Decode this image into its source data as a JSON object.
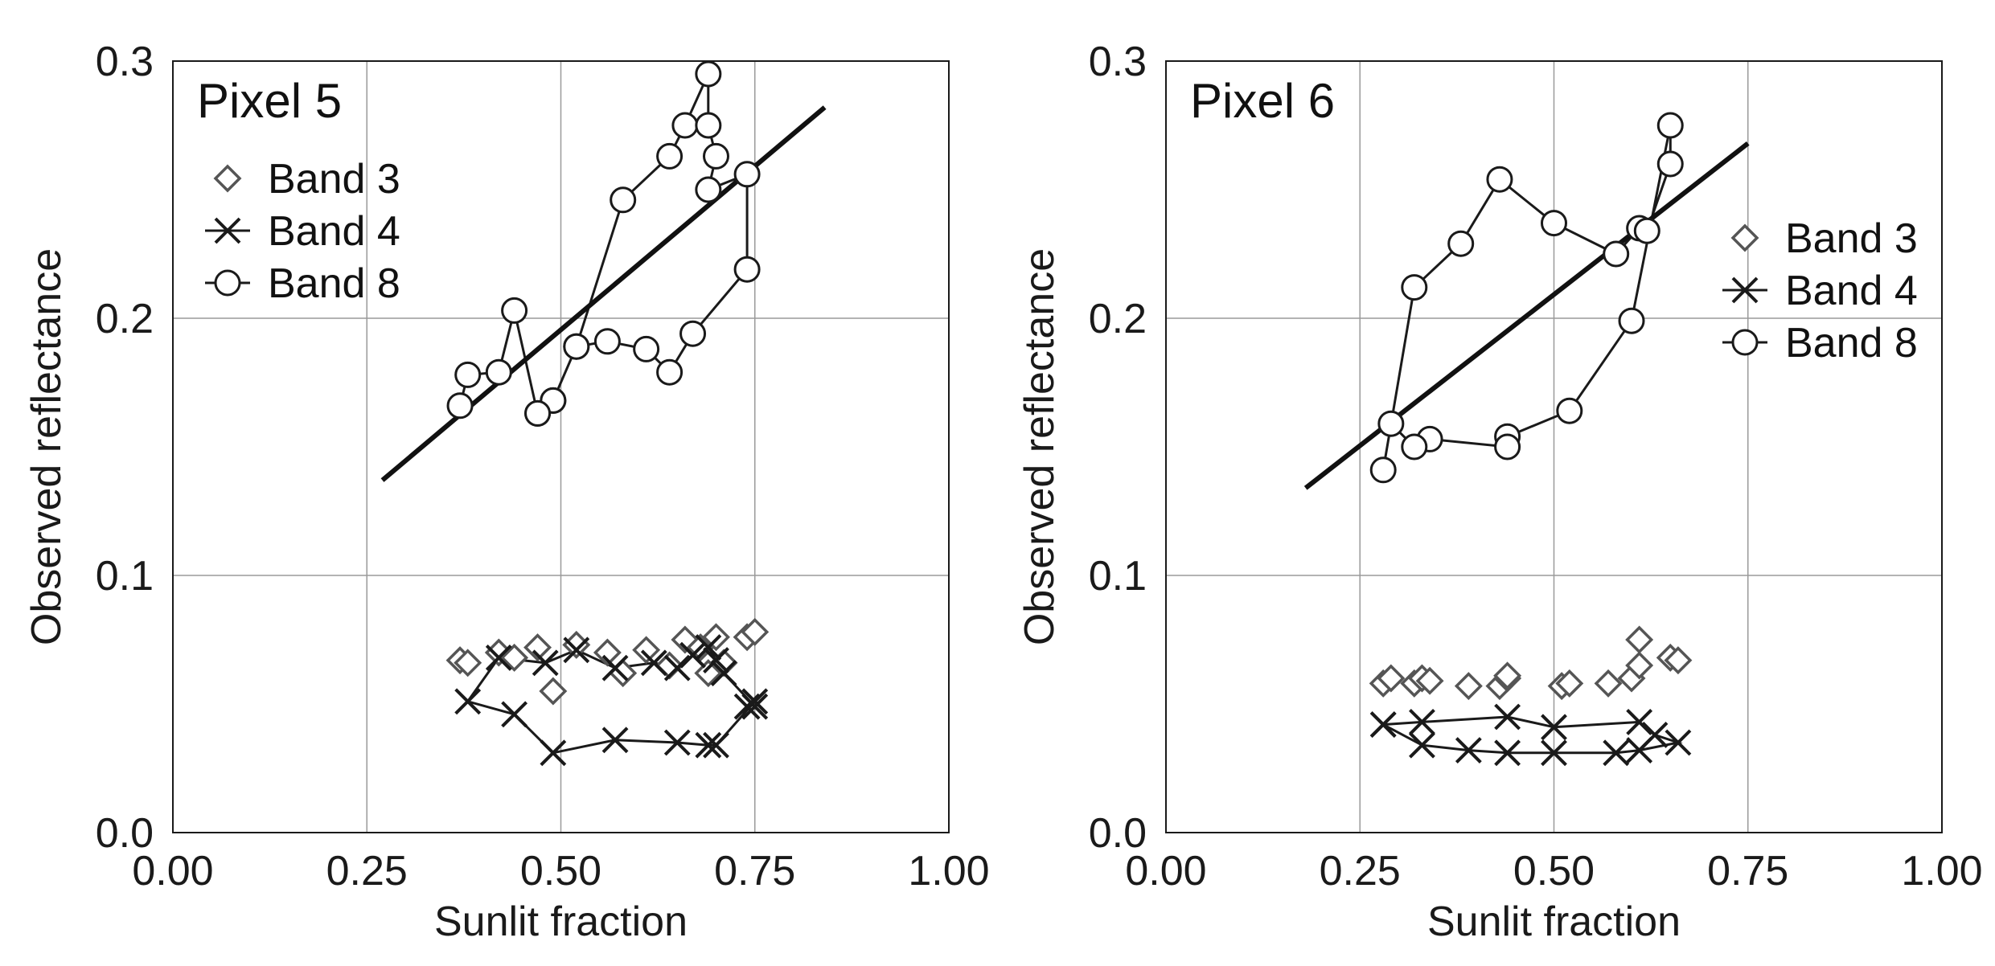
{
  "chart_data": [
    {
      "type": "scatter",
      "title": "Pixel 5",
      "xlabel": "Sunlit fraction",
      "ylabel": "Observed reflectance",
      "xlim": [
        0,
        1
      ],
      "ylim": [
        0,
        0.3
      ],
      "xticks": [
        "0.00",
        "0.25",
        "0.50",
        "0.75",
        "1.00"
      ],
      "yticks": [
        "0.0",
        "0.1",
        "0.2",
        "0.3"
      ],
      "grid": true,
      "legend_position": "top-left",
      "legend": [
        {
          "label": "Band 3",
          "marker": "diamond"
        },
        {
          "label": "Band 4",
          "marker": "x"
        },
        {
          "label": "Band 8",
          "marker": "circle"
        }
      ],
      "series": [
        {
          "name": "Band 3",
          "marker": "diamond",
          "connected": false,
          "x": [
            0.37,
            0.38,
            0.42,
            0.44,
            0.47,
            0.49,
            0.52,
            0.56,
            0.58,
            0.61,
            0.64,
            0.66,
            0.68,
            0.7,
            0.71,
            0.74,
            0.75,
            0.69
          ],
          "y": [
            0.067,
            0.066,
            0.07,
            0.068,
            0.072,
            0.055,
            0.073,
            0.07,
            0.062,
            0.071,
            0.065,
            0.075,
            0.072,
            0.076,
            0.066,
            0.076,
            0.078,
            0.062
          ]
        },
        {
          "name": "Band 4",
          "marker": "x",
          "connected": true,
          "x": [
            0.75,
            0.71,
            0.7,
            0.69,
            0.67,
            0.65,
            0.62,
            0.57,
            0.52,
            0.48,
            0.42,
            0.38,
            0.44,
            0.49,
            0.57,
            0.65,
            0.69,
            0.7,
            0.75,
            0.74
          ],
          "y": [
            0.049,
            0.062,
            0.067,
            0.072,
            0.069,
            0.064,
            0.066,
            0.064,
            0.071,
            0.066,
            0.068,
            0.051,
            0.046,
            0.031,
            0.036,
            0.035,
            0.034,
            0.034,
            0.051,
            0.049
          ]
        },
        {
          "name": "Band 8",
          "marker": "circle",
          "connected": true,
          "x": [
            0.37,
            0.38,
            0.42,
            0.44,
            0.47,
            0.49,
            0.52,
            0.58,
            0.64,
            0.66,
            0.69,
            0.69,
            0.7,
            0.69,
            0.74,
            0.74,
            0.67,
            0.64,
            0.61,
            0.56,
            0.52,
            0.49,
            0.47
          ],
          "y": [
            0.166,
            0.178,
            0.179,
            0.203,
            0.163,
            0.168,
            0.189,
            0.246,
            0.263,
            0.275,
            0.295,
            0.275,
            0.263,
            0.25,
            0.256,
            0.219,
            0.194,
            0.179,
            0.188,
            0.191,
            0.189,
            0.168,
            0.163
          ]
        }
      ],
      "fit_line": {
        "x": [
          0.27,
          0.84
        ],
        "y": [
          0.137,
          0.282
        ]
      }
    },
    {
      "type": "scatter",
      "title": "Pixel 6",
      "xlabel": "Sunlit fraction",
      "ylabel": "Observed reflectance",
      "xlim": [
        0,
        1
      ],
      "ylim": [
        0,
        0.3
      ],
      "xticks": [
        "0.00",
        "0.25",
        "0.50",
        "0.75",
        "1.00"
      ],
      "yticks": [
        "0.0",
        "0.1",
        "0.2",
        "0.3"
      ],
      "grid": true,
      "legend_position": "right",
      "legend": [
        {
          "label": "Band 3",
          "marker": "diamond"
        },
        {
          "label": "Band 4",
          "marker": "x"
        },
        {
          "label": "Band 8",
          "marker": "circle"
        }
      ],
      "series": [
        {
          "name": "Band 3",
          "marker": "diamond",
          "connected": false,
          "x": [
            0.28,
            0.29,
            0.32,
            0.33,
            0.34,
            0.39,
            0.43,
            0.44,
            0.44,
            0.51,
            0.52,
            0.57,
            0.6,
            0.61,
            0.61,
            0.65,
            0.66
          ],
          "y": [
            0.058,
            0.06,
            0.058,
            0.06,
            0.059,
            0.057,
            0.057,
            0.06,
            0.061,
            0.057,
            0.058,
            0.058,
            0.06,
            0.065,
            0.075,
            0.068,
            0.067
          ]
        },
        {
          "name": "Band 4",
          "marker": "x",
          "connected": true,
          "x": [
            0.28,
            0.33,
            0.44,
            0.5,
            0.61,
            0.63,
            0.66,
            0.61,
            0.58,
            0.5,
            0.44,
            0.39,
            0.33,
            0.28
          ],
          "y": [
            0.042,
            0.043,
            0.045,
            0.041,
            0.043,
            0.038,
            0.035,
            0.032,
            0.031,
            0.031,
            0.031,
            0.032,
            0.034,
            0.042
          ]
        },
        {
          "name": "Band 8",
          "marker": "circle",
          "connected": true,
          "x": [
            0.28,
            0.32,
            0.38,
            0.43,
            0.5,
            0.58,
            0.61,
            0.62,
            0.65,
            0.65,
            0.6,
            0.52,
            0.44,
            0.44,
            0.34,
            0.32,
            0.29
          ],
          "y": [
            0.141,
            0.212,
            0.229,
            0.254,
            0.237,
            0.225,
            0.235,
            0.234,
            0.26,
            0.275,
            0.199,
            0.164,
            0.154,
            0.15,
            0.153,
            0.15,
            0.159
          ]
        }
      ],
      "fit_line": {
        "x": [
          0.18,
          0.75
        ],
        "y": [
          0.134,
          0.268
        ]
      }
    }
  ]
}
